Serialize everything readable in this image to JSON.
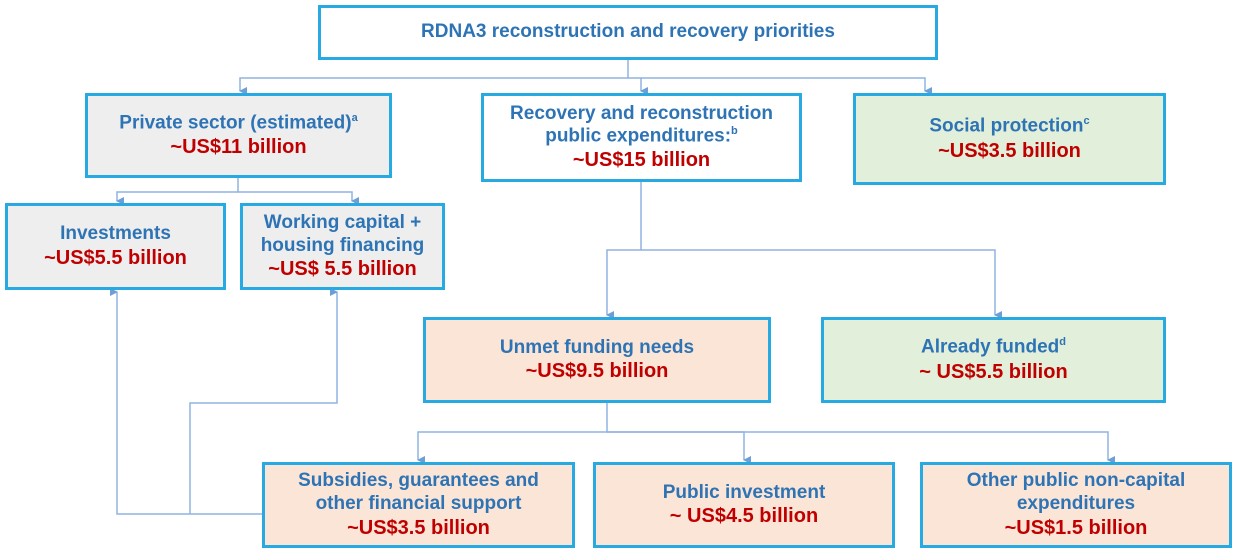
{
  "title": "RDNA3 reconstruction and recovery priorities",
  "nodes": [
    {
      "lines": [
        "Private sector (estimated)"
      ],
      "sup": "a",
      "amount": "~US$11 billion"
    },
    {
      "lines": [
        "Recovery and reconstruction",
        "public expenditures:"
      ],
      "sup": "b",
      "amount": "~US$15 billion"
    },
    {
      "lines": [
        "Social protection"
      ],
      "sup": "c",
      "amount": "~US$3.5 billion"
    },
    {
      "lines": [
        "Investments"
      ],
      "amount": "~US$5.5 billion"
    },
    {
      "lines": [
        "Working capital +",
        "housing financing"
      ],
      "amount": "~US$ 5.5 billion"
    },
    {
      "lines": [
        "Unmet funding needs"
      ],
      "amount": "~US$9.5 billion"
    },
    {
      "lines": [
        "Already funded"
      ],
      "sup": "d",
      "amount": "~ US$5.5 billion"
    },
    {
      "lines": [
        "Subsidies, guarantees and",
        "other financial support"
      ],
      "amount": "~US$3.5 billion"
    },
    {
      "lines": [
        "Public investment"
      ],
      "amount": "~ US$4.5 billion"
    },
    {
      "lines": [
        "Other public non-capital",
        "expenditures"
      ],
      "amount": "~US$1.5 billion"
    }
  ]
}
